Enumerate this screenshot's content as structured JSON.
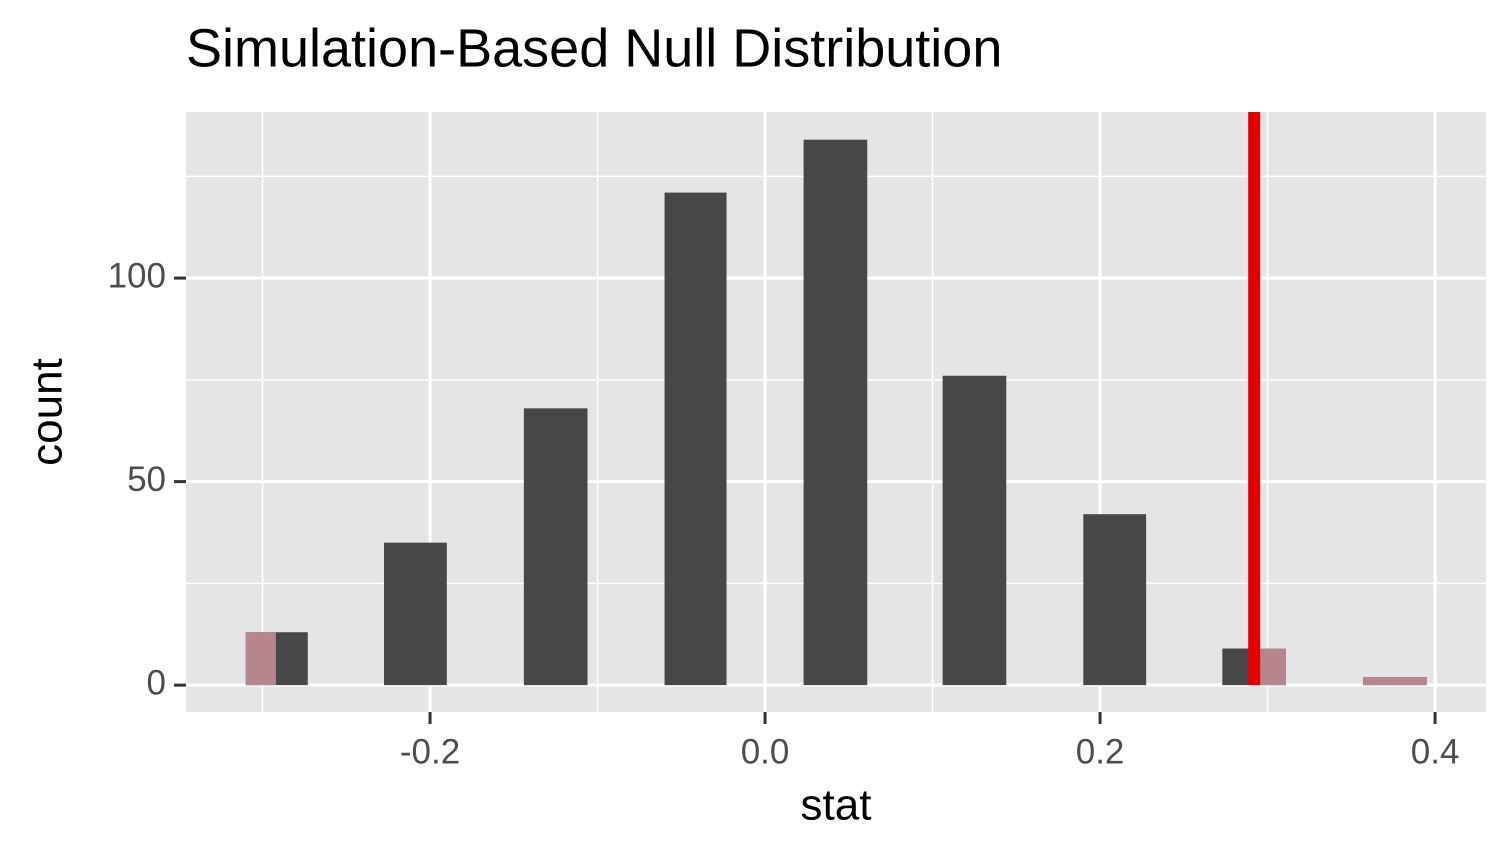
{
  "chart_data": {
    "type": "histogram",
    "title": "Simulation-Based Null Distribution",
    "x_label": "stat",
    "y_label": "count",
    "bins": [
      -0.31,
      -0.273,
      -0.2275,
      -0.19,
      -0.144,
      -0.106,
      -0.06,
      -0.023,
      0.023,
      0.061,
      0.106,
      0.144,
      0.19,
      0.2275,
      0.273,
      0.311,
      0.357,
      0.395
    ],
    "counts": [
      13,
      0,
      35,
      0,
      68,
      0,
      121,
      0,
      134,
      0,
      76,
      0,
      42,
      0,
      9,
      0,
      2
    ],
    "color": "#474747",
    "obs_stat": 0.292,
    "obs_stat_color": "#e50000",
    "shade_direction": "both",
    "shade_color": "#b5868c",
    "xlim": [
      -0.3457,
      0.4304
    ],
    "ylim": [
      -6.6,
      140.8
    ],
    "xticks": [
      -0.2,
      {
        "value": 0,
        "label": "0.0"
      },
      0.2,
      0.4
    ],
    "x_minor_ticks": [
      -0.3,
      -0.1,
      0.1,
      0.3
    ],
    "yticks": [
      0,
      50,
      100
    ],
    "y_minor_ticks": [
      25,
      75,
      125
    ],
    "grid": true
  }
}
